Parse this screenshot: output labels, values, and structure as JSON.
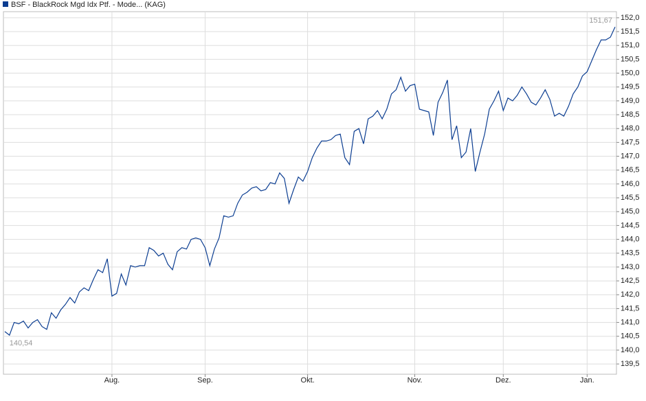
{
  "chart_data": {
    "type": "line",
    "series": [
      {
        "name": "BSF - BlackRock Mgd Idx Ptf. - Mode... (KAG)",
        "color": "#0b3d91",
        "values": [
          140.67,
          140.54,
          141.0,
          140.95,
          141.05,
          140.8,
          141.0,
          141.1,
          140.85,
          140.75,
          141.35,
          141.15,
          141.45,
          141.65,
          141.9,
          141.7,
          142.1,
          142.25,
          142.15,
          142.55,
          142.9,
          142.8,
          143.3,
          141.95,
          142.05,
          142.75,
          142.35,
          143.05,
          143.0,
          143.05,
          143.05,
          143.7,
          143.6,
          143.4,
          143.5,
          143.1,
          142.9,
          143.55,
          143.7,
          143.65,
          144.0,
          144.05,
          144.0,
          143.7,
          143.05,
          143.65,
          144.05,
          144.85,
          144.8,
          144.85,
          145.3,
          145.6,
          145.7,
          145.85,
          145.9,
          145.75,
          145.8,
          146.05,
          146.0,
          146.4,
          146.2,
          145.3,
          145.8,
          146.25,
          146.1,
          146.45,
          146.95,
          147.3,
          147.55,
          147.55,
          147.6,
          147.75,
          147.8,
          146.95,
          146.7,
          147.9,
          148.0,
          147.45,
          148.35,
          148.45,
          148.65,
          148.35,
          148.7,
          149.25,
          149.4,
          149.85,
          149.35,
          149.55,
          149.6,
          148.7,
          148.65,
          148.6,
          147.75,
          148.95,
          149.3,
          149.75,
          147.6,
          148.1,
          146.95,
          147.15,
          148.0,
          146.45,
          147.15,
          147.8,
          148.7,
          149.0,
          149.35,
          148.65,
          149.1,
          149.0,
          149.2,
          149.5,
          149.25,
          148.95,
          148.85,
          149.1,
          149.4,
          149.05,
          148.45,
          148.55,
          148.45,
          148.8,
          149.25,
          149.5,
          149.9,
          150.05,
          150.45,
          150.85,
          151.2,
          151.2,
          151.3,
          151.67
        ]
      }
    ],
    "xlim": [
      0,
      131
    ],
    "xticks": [
      {
        "value": 23,
        "label": "Aug."
      },
      {
        "value": 43,
        "label": "Sep."
      },
      {
        "value": 65,
        "label": "Okt."
      },
      {
        "value": 88,
        "label": "Nov."
      },
      {
        "value": 107,
        "label": "Dez."
      },
      {
        "value": 125,
        "label": "Jan."
      }
    ],
    "ylim": [
      139.13,
      152.22
    ],
    "yticks": [
      {
        "value": 139.5,
        "label": "139,5"
      },
      {
        "value": 140,
        "label": "140,0"
      },
      {
        "value": 140.5,
        "label": "140,5"
      },
      {
        "value": 141,
        "label": "141,0"
      },
      {
        "value": 141.5,
        "label": "141,5"
      },
      {
        "value": 142,
        "label": "142,0"
      },
      {
        "value": 142.5,
        "label": "142,5"
      },
      {
        "value": 143,
        "label": "143,0"
      },
      {
        "value": 143.5,
        "label": "143,5"
      },
      {
        "value": 144,
        "label": "144,0"
      },
      {
        "value": 144.5,
        "label": "144,5"
      },
      {
        "value": 145,
        "label": "145,0"
      },
      {
        "value": 145.5,
        "label": "145,5"
      },
      {
        "value": 146,
        "label": "146,0"
      },
      {
        "value": 146.5,
        "label": "146,5"
      },
      {
        "value": 147,
        "label": "147,0"
      },
      {
        "value": 147.5,
        "label": "147,5"
      },
      {
        "value": 148,
        "label": "148,0"
      },
      {
        "value": 148.5,
        "label": "148,5"
      },
      {
        "value": 149,
        "label": "149,0"
      },
      {
        "value": 149.5,
        "label": "149,5"
      },
      {
        "value": 150,
        "label": "150,0"
      },
      {
        "value": 150.5,
        "label": "150,5"
      },
      {
        "value": 151,
        "label": "151,0"
      },
      {
        "value": 151.5,
        "label": "151,5"
      },
      {
        "value": 152,
        "label": "152,0"
      }
    ],
    "grid": true,
    "annotations": [
      {
        "text": "140,54",
        "value": 140.54
      },
      {
        "text": "151,67",
        "value": 151.67
      }
    ]
  }
}
